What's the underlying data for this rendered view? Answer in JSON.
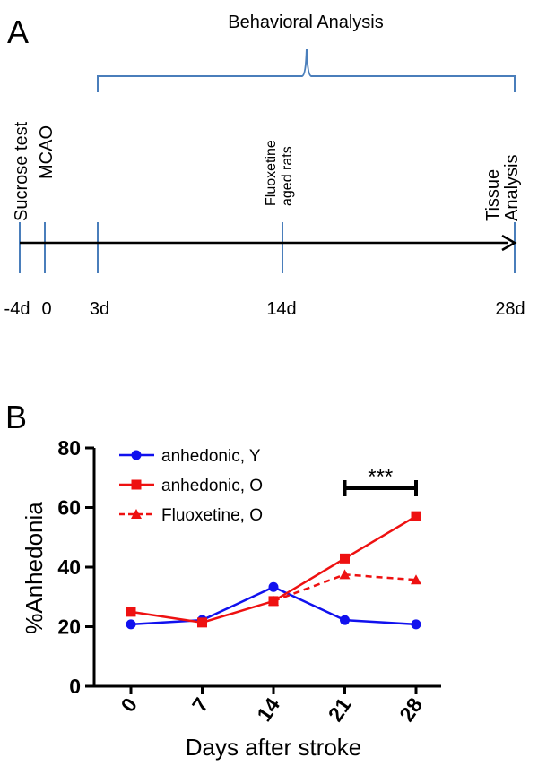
{
  "colors": {
    "timeline_blue": "#4a7ebb",
    "series_blue": "#1111ee",
    "series_red": "#ee1111",
    "black": "#000000"
  },
  "panel_a": {
    "label": "A",
    "bracket_label": "Behavioral Analysis",
    "events": [
      {
        "day": -4,
        "tick": "-4d",
        "label": "Sucrose test"
      },
      {
        "day": 0,
        "tick": "0",
        "label": "MCAO"
      },
      {
        "day": 3,
        "tick": "3d",
        "label": ""
      },
      {
        "day": 14,
        "tick": "14d",
        "label_line1": "Fluoxetine",
        "label_line2": "aged rats"
      },
      {
        "day": 28,
        "tick": "28d",
        "label_line1": "Tissue",
        "label_line2": "Analysis"
      }
    ]
  },
  "panel_b": {
    "label": "B"
  },
  "chart_data": {
    "type": "line",
    "title": "",
    "xlabel": "Days after stroke",
    "ylabel": "%Anhedonia",
    "categories": [
      "0",
      "7",
      "14",
      "21",
      "28"
    ],
    "x": [
      0,
      7,
      14,
      21,
      28
    ],
    "ylim": [
      0,
      80
    ],
    "yticks": [
      0,
      20,
      40,
      60,
      80
    ],
    "series": [
      {
        "name": "anhedonic, Y",
        "color": "#1111ee",
        "marker": "circle",
        "dashed": false,
        "x": [
          0,
          7,
          14,
          21,
          28
        ],
        "values": [
          20.8,
          22.2,
          33.3,
          22.2,
          20.8
        ]
      },
      {
        "name": "anhedonic, O",
        "color": "#ee1111",
        "marker": "square",
        "dashed": false,
        "x": [
          0,
          7,
          14,
          21,
          28
        ],
        "values": [
          25.0,
          21.4,
          28.6,
          42.9,
          57.1
        ]
      },
      {
        "name": "Fluoxetine, O",
        "color": "#ee1111",
        "marker": "triangle",
        "dashed": true,
        "x": [
          14,
          21,
          28
        ],
        "values": [
          28.6,
          37.5,
          35.7
        ]
      }
    ],
    "legend_position": "top-left",
    "annotation": {
      "text": "***",
      "x_from": 21,
      "x_to": 28
    }
  }
}
